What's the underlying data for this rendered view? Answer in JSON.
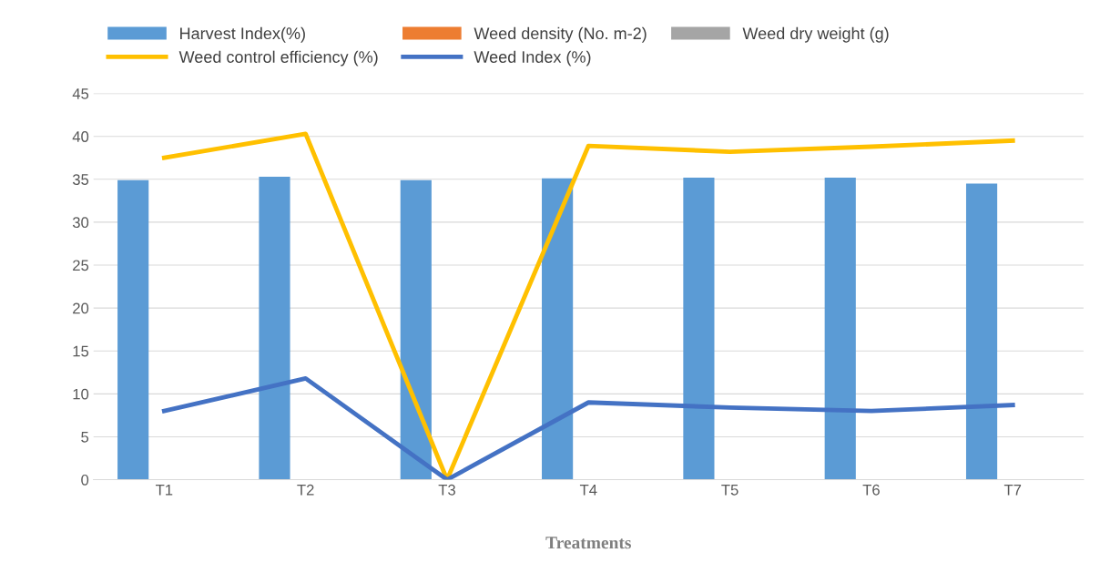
{
  "chart_data": {
    "type": "bar",
    "xlabel": "Treatments",
    "categories": [
      "T1",
      "T2",
      "T3",
      "T4",
      "T5",
      "T6",
      "T7"
    ],
    "series": [
      {
        "name": "Harvest Index(%)",
        "color": "#5b9bd5",
        "values": [
          34.9,
          35.3,
          34.9,
          35.1,
          35.2,
          35.2,
          34.5
        ]
      },
      {
        "name": "Weed density (No. m-2)",
        "color": "#ed7d31",
        "values": [
          null,
          null,
          null,
          null,
          null,
          null,
          null
        ]
      },
      {
        "name": "Weed dry weight (g)",
        "color": "#a5a5a5",
        "values": [
          null,
          null,
          null,
          null,
          null,
          null,
          null
        ]
      },
      {
        "name": "Weed control efficiency (%)",
        "type": "line",
        "color": "#ffc000",
        "values": [
          37.5,
          40.3,
          0,
          38.9,
          38.2,
          38.8,
          39.5
        ]
      },
      {
        "name": "Weed Index (%)",
        "type": "line",
        "color": "#4472c4",
        "values": [
          8.0,
          11.8,
          0,
          9.0,
          8.4,
          8.0,
          8.7
        ]
      }
    ],
    "ylim": [
      0,
      45
    ],
    "yticks": [
      0,
      5,
      10,
      15,
      20,
      25,
      30,
      35,
      40,
      45
    ],
    "grid": "y",
    "legend": "top"
  }
}
